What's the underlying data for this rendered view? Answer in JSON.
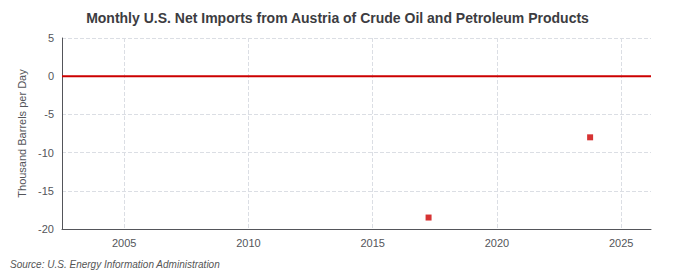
{
  "chart_data": {
    "type": "line",
    "title": "Monthly U.S. Net Imports from Austria of Crude Oil and Petroleum Products",
    "ylabel": "Thousand Barrels per Day",
    "source": "Source: U.S. Energy Information Administration",
    "series": [
      {
        "type": "line",
        "color": "#cc0000",
        "line_style": "solid",
        "x": [
          2002.5,
          2026.2
        ],
        "values": [
          0,
          0
        ]
      },
      {
        "type": "scatter",
        "color": "#cc0000",
        "marker": "square",
        "x": [
          2017.25,
          2023.75
        ],
        "values": [
          -18.5,
          -8.0
        ]
      }
    ],
    "xlim": [
      2002.5,
      2026.2
    ],
    "xticks": [
      2005,
      2010,
      2015,
      2020,
      2025
    ],
    "ylim": [
      -20,
      5
    ],
    "yticks": [
      -20,
      -15,
      -10,
      -5,
      0,
      5
    ],
    "grid": true
  }
}
